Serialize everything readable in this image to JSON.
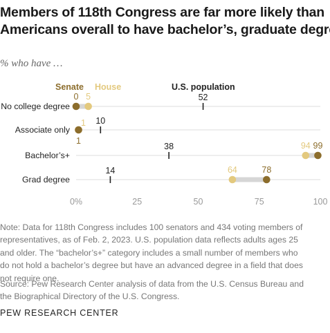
{
  "title_lines": [
    "Members of 118th Congress are far more likely than",
    "Americans overall to have bachelor’s, graduate degree"
  ],
  "subtitle": "% who have …",
  "note_lines": [
    "Note: Data for 118th Congress includes 100 senators and 434 voting members of",
    "representatives, as of Feb. 2, 2023. U.S. population data reflects adults ages 25",
    "and older. The “bachelor’s+” category includes a small number of members who",
    "do not hold a bachelor’s degree but have an advanced degree in a field that does",
    "not require one."
  ],
  "source_lines": [
    "Source: Pew Research Center analysis of data from the U.S. Census Bureau and",
    "the Biographical Directory of the U.S. Congress."
  ],
  "brand": "PEW RESEARCH CENTER",
  "colors": {
    "senate": "#8c6d2c",
    "house": "#e3c97e",
    "us_population": "#222222",
    "axis_text": "#999999",
    "line": "#dcdcdc"
  },
  "chart_data": {
    "type": "scatter",
    "categories": [
      "No college degree",
      "Associate only",
      "Bachelor’s+",
      "Grad degree"
    ],
    "series": [
      {
        "name": "Senate",
        "values": [
          0,
          1,
          99,
          78
        ]
      },
      {
        "name": "House",
        "values": [
          5,
          1,
          94,
          64
        ]
      },
      {
        "name": "U.S. population",
        "values": [
          52,
          10,
          38,
          14
        ]
      }
    ],
    "x_ticks": [
      "0%",
      "25",
      "50",
      "75",
      "100"
    ],
    "xlim": [
      0,
      100
    ],
    "legend_placement": "top"
  }
}
